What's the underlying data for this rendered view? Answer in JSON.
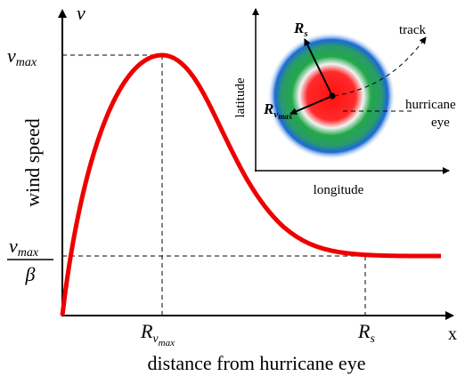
{
  "axes": {
    "y_symbol": "v",
    "x_symbol": "x",
    "y_label": "wind speed",
    "x_label": "distance from hurricane eye"
  },
  "y_marks": {
    "v_max": {
      "base": "v",
      "sub": "max"
    },
    "v_max_over_beta": {
      "numerator": {
        "base": "v",
        "sub": "max"
      },
      "denominator": "β"
    }
  },
  "x_marks": {
    "r_vmax": {
      "base": "R",
      "sub": "v",
      "subsub": "max"
    },
    "r_s": {
      "base": "R",
      "sub": "s"
    }
  },
  "inset": {
    "y_label": "latitude",
    "x_label": "longitude",
    "track": "track",
    "eye": [
      "hurricane",
      "eye"
    ],
    "r_s": {
      "base": "R",
      "sub": "s"
    },
    "r_vmax": {
      "base": "R",
      "sub": "v",
      "subsub": "max"
    }
  }
}
